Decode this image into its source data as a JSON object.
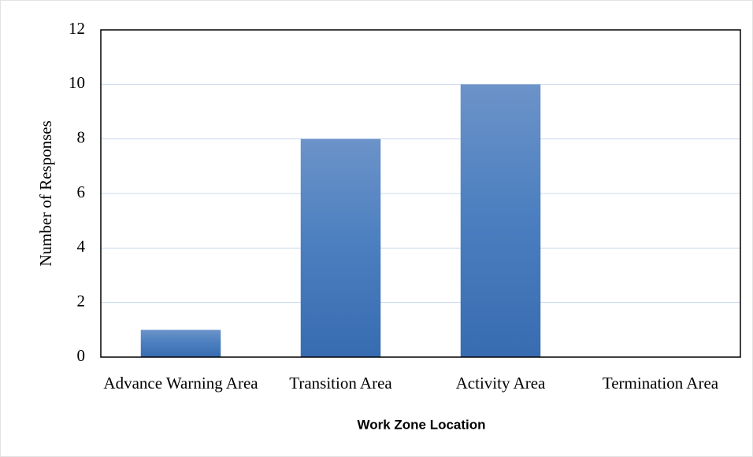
{
  "chart_data": {
    "type": "bar",
    "categories": [
      "Advance Warning Area",
      "Transition Area",
      "Activity Area",
      "Termination Area"
    ],
    "values": [
      1,
      8,
      10,
      0
    ],
    "color": "#4a7ebf",
    "x_label": "Work Zone Location",
    "y_label": "Number of Responses",
    "ylim": [
      0,
      12
    ],
    "yticks": [
      0,
      2,
      4,
      6,
      8,
      10,
      12
    ],
    "grid": true
  }
}
